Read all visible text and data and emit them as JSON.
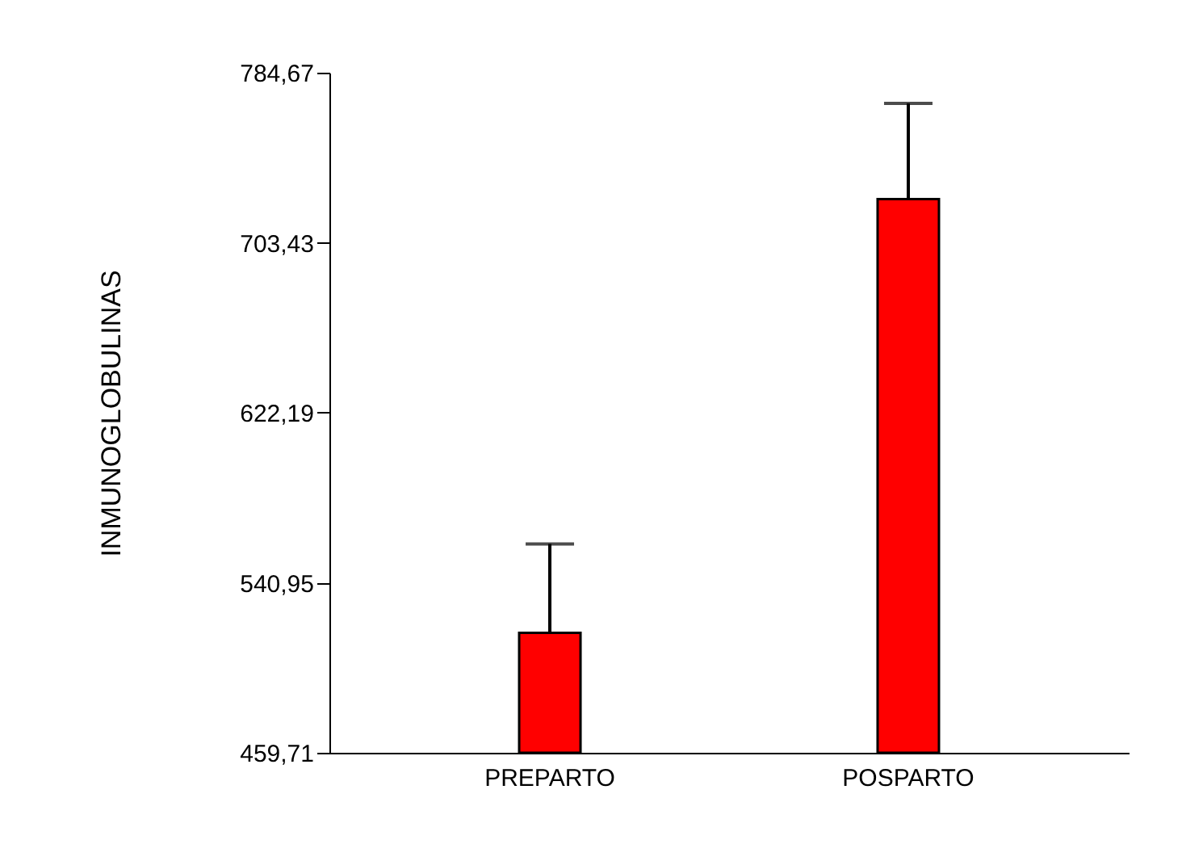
{
  "chart_data": {
    "type": "bar",
    "ylabel": "INMUNOGLOBULINAS",
    "categories": [
      "PREPARTO",
      "POSPARTO"
    ],
    "values": [
      517.0,
      724.3
    ],
    "color": "#ff0000",
    "errors": [
      [
        517.0,
        559.5
      ],
      [
        724.3,
        770.0
      ]
    ],
    "ylim": [
      459.71,
      784.67
    ],
    "yticks": [
      {
        "value": 459.71,
        "label": "459,71"
      },
      {
        "value": 540.95,
        "label": "540,95"
      },
      {
        "value": 622.19,
        "label": "622,19"
      },
      {
        "value": 703.43,
        "label": "703,43"
      },
      {
        "value": 784.67,
        "label": "784,67"
      }
    ],
    "grid": false
  }
}
